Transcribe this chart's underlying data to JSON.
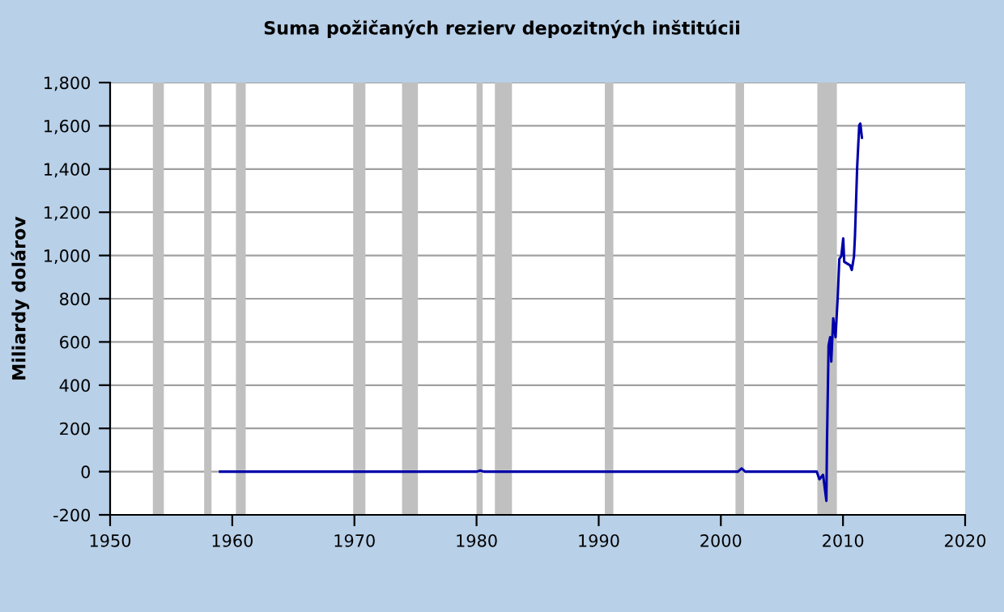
{
  "chart_data": {
    "type": "line",
    "title": "Suma požičaných rezierv depozitných inštitúcii",
    "ylabel": "Miliardy dolárov",
    "series": [
      {
        "color": "#0000aa",
        "x": [
          1959.0,
          1980.0,
          1980.3,
          1980.6,
          2001.4,
          2001.7,
          2002.0,
          2007.85,
          2008.07,
          2008.37,
          2008.64,
          2008.69,
          2008.82,
          2008.95,
          2009.04,
          2009.2,
          2009.39,
          2009.57,
          2009.7,
          2009.86,
          2010.02,
          2010.1,
          2010.59,
          2010.72,
          2010.9,
          2010.98,
          2011.16,
          2011.33,
          2011.42,
          2011.55
        ],
        "values": [
          0,
          0,
          5,
          0,
          0,
          15,
          0,
          0,
          -35,
          -15,
          -135,
          135,
          584,
          622,
          509,
          709,
          622,
          809,
          984,
          996,
          1079,
          971,
          954,
          933,
          996,
          1088,
          1408,
          1603,
          1610,
          1545
        ]
      }
    ],
    "xlim": [
      1950,
      2020
    ],
    "xticks": [
      1950,
      1960,
      1970,
      1980,
      1990,
      2000,
      2010,
      2020
    ],
    "ylim": [
      -200,
      1800
    ],
    "yticks": [
      {
        "value": -200,
        "label": "-200"
      },
      0,
      200,
      400,
      600,
      800,
      {
        "value": 1000,
        "label": "1,000"
      },
      {
        "value": 1200,
        "label": "1,200"
      },
      {
        "value": 1400,
        "label": "1,400"
      },
      {
        "value": 1600,
        "label": "1,600"
      },
      {
        "value": 1800,
        "label": "1,800"
      }
    ],
    "grid": "y",
    "legend": false,
    "bands": [
      {
        "axis": "x",
        "from": 1953.5,
        "to": 1954.4,
        "color": "#c0c0c0"
      },
      {
        "axis": "x",
        "from": 1957.7,
        "to": 1958.3,
        "color": "#c0c0c0"
      },
      {
        "axis": "x",
        "from": 1960.3,
        "to": 1961.1,
        "color": "#c0c0c0"
      },
      {
        "axis": "x",
        "from": 1969.9,
        "to": 1970.9,
        "color": "#c0c0c0"
      },
      {
        "axis": "x",
        "from": 1973.9,
        "to": 1975.2,
        "color": "#c0c0c0"
      },
      {
        "axis": "x",
        "from": 1980.0,
        "to": 1980.5,
        "color": "#c0c0c0"
      },
      {
        "axis": "x",
        "from": 1981.5,
        "to": 1982.9,
        "color": "#c0c0c0"
      },
      {
        "axis": "x",
        "from": 1990.5,
        "to": 1991.2,
        "color": "#c0c0c0"
      },
      {
        "axis": "x",
        "from": 2001.2,
        "to": 2001.9,
        "color": "#c0c0c0"
      },
      {
        "axis": "x",
        "from": 2007.9,
        "to": 2009.5,
        "color": "#c0c0c0"
      }
    ]
  }
}
